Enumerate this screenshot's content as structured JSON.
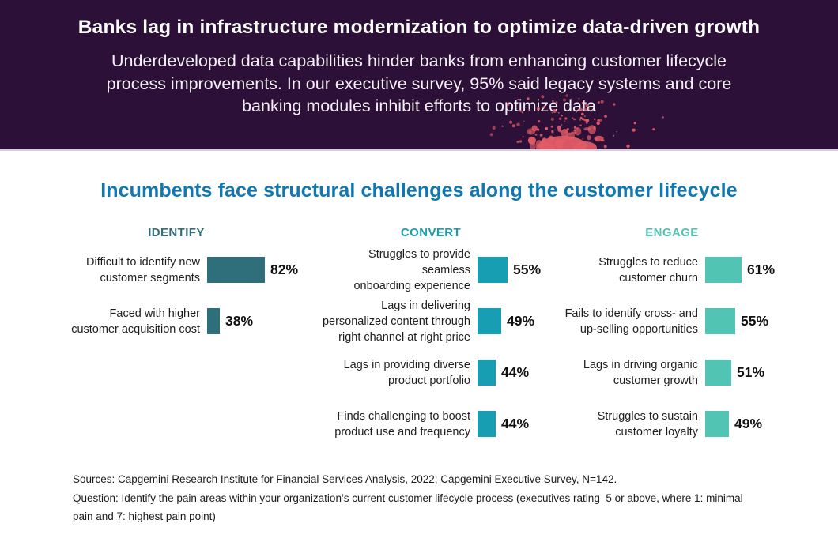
{
  "hero": {
    "title": "Banks lag in infrastructure modernization to optimize data-driven growth",
    "subtitle": "Underdeveloped data capabilities hinder banks from enhancing customer lifecycle\nprocess improvements. In our executive survey, 95% said legacy systems and core\nbanking modules inhibit efforts to optimize data"
  },
  "chart_data": {
    "type": "bar",
    "orientation": "horizontal",
    "title": "Incumbents face structural challenges along the customer lifecycle",
    "value_unit": "%",
    "xlim": [
      26,
      100
    ],
    "grid": false,
    "legend": false,
    "groups": [
      {
        "name": "IDENTIFY",
        "color": "#2e6f7b",
        "items": [
          {
            "label": "Difficult to identify new\ncustomer segments",
            "value": 82
          },
          {
            "label": "Faced with higher\ncustomer acquisition cost",
            "value": 38
          }
        ]
      },
      {
        "name": "CONVERT",
        "color": "#189eb2",
        "items": [
          {
            "label": "Struggles to provide seamless\nonboarding experience",
            "value": 55
          },
          {
            "label": "Lags in delivering\npersonalized content through\nright channel at right price",
            "value": 49
          },
          {
            "label": "Lags in providing diverse\nproduct portfolio",
            "value": 44
          },
          {
            "label": "Finds challenging to boost\nproduct use and frequency",
            "value": 44
          }
        ]
      },
      {
        "name": "ENGAGE",
        "color": "#52c4b3",
        "items": [
          {
            "label": "Struggles to reduce\ncustomer churn",
            "value": 61
          },
          {
            "label": "Fails to identify cross- and\nup-selling opportunities",
            "value": 55
          },
          {
            "label": "Lags in driving organic\ncustomer growth",
            "value": 51
          },
          {
            "label": "Struggles to sustain\ncustomer loyalty",
            "value": 49
          }
        ]
      }
    ]
  },
  "footer": {
    "sources": "Sources: Capgemini Research Institute for Financial Services Analysis, 2022; Capgemini Executive Survey, N=142.",
    "question": "Question: Identify the pain areas within your organization’s current customer lifecycle process (executives rating  5 or above, where 1: minimal\npain and 7: highest pain point)"
  },
  "colors": {
    "header_background": "#2d1038",
    "splatter_accent": "#e25c66",
    "chart_title_blue": "#1177b2"
  }
}
